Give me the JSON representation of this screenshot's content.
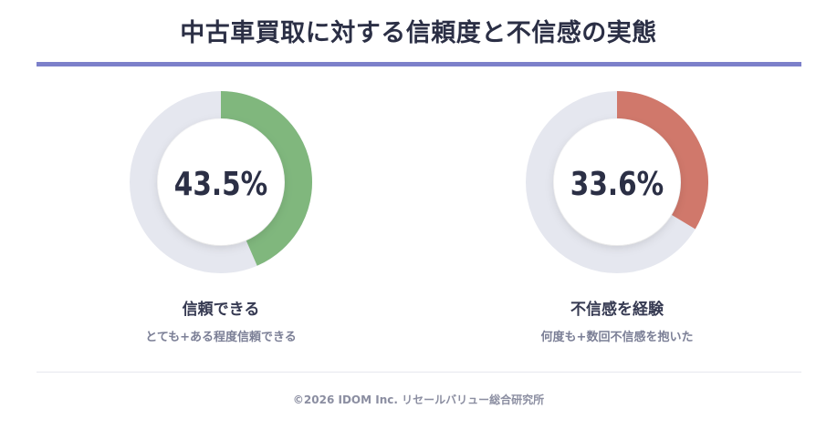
{
  "title": "中古車買取に対する信頼度と不信感の実態",
  "colors": {
    "accent_rule": "#7c80ca",
    "track": "#e5e7ef",
    "trust": "#80b77d",
    "distrust": "#d0786b",
    "center_text": "#2b2f45"
  },
  "chart_data": [
    {
      "type": "pie",
      "variant": "donut",
      "value_percent": 43.5,
      "center_label": "43.5%",
      "label": "信頼できる",
      "sublabel": "とても+ある程度信頼できる",
      "color": "#80b77d",
      "track_color": "#e5e7ef"
    },
    {
      "type": "pie",
      "variant": "donut",
      "value_percent": 33.6,
      "center_label": "33.6%",
      "label": "不信感を経験",
      "sublabel": "何度も+数回不信感を抱いた",
      "color": "#d0786b",
      "track_color": "#e5e7ef"
    }
  ],
  "footer": "©2026 IDOM Inc. リセールバリュー総合研究所"
}
